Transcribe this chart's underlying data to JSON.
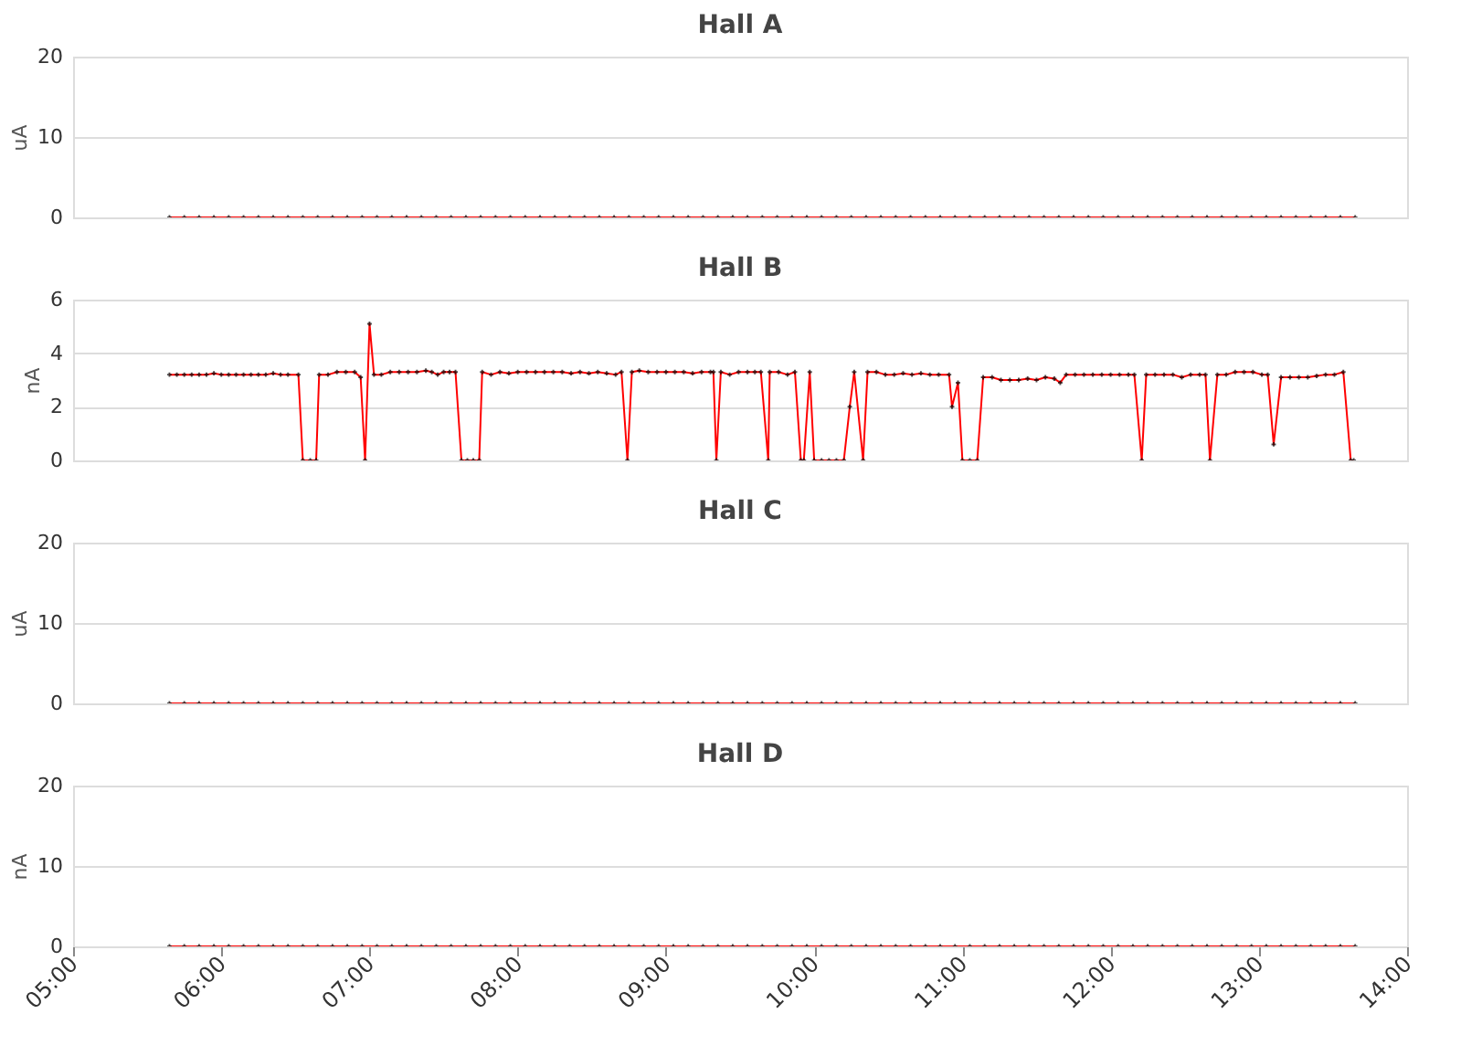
{
  "chart_data": [
    {
      "type": "line",
      "title": "Hall A",
      "ylabel": "uA",
      "ylim": [
        0,
        20
      ],
      "yticks": [
        0,
        10,
        20
      ],
      "xlim": [
        5,
        14
      ],
      "tick_labels": "y",
      "grid": "y",
      "marker": "cross",
      "line_style": "solid",
      "series": [
        {
          "color": "#ff0000",
          "x": [
            5.65,
            5.75,
            5.85,
            5.95,
            6.05,
            6.15,
            6.25,
            6.35,
            6.45,
            6.55,
            6.65,
            6.75,
            6.85,
            6.95,
            7.05,
            7.15,
            7.25,
            7.35,
            7.45,
            7.55,
            7.65,
            7.75,
            7.85,
            7.95,
            8.05,
            8.15,
            8.25,
            8.35,
            8.45,
            8.55,
            8.65,
            8.75,
            8.85,
            8.95,
            9.05,
            9.15,
            9.25,
            9.35,
            9.45,
            9.55,
            9.65,
            9.75,
            9.85,
            9.95,
            10.05,
            10.15,
            10.25,
            10.35,
            10.45,
            10.55,
            10.65,
            10.75,
            10.85,
            10.95,
            11.05,
            11.15,
            11.25,
            11.35,
            11.45,
            11.55,
            11.65,
            11.75,
            11.85,
            11.95,
            12.05,
            12.15,
            12.25,
            12.35,
            12.45,
            12.55,
            12.65,
            12.75,
            12.85,
            12.95,
            13.05,
            13.15,
            13.25,
            13.35,
            13.45,
            13.55,
            13.65
          ],
          "values": [
            0,
            0,
            0,
            0,
            0,
            0,
            0,
            0,
            0,
            0,
            0,
            0,
            0,
            0,
            0,
            0,
            0,
            0,
            0,
            0,
            0,
            0,
            0,
            0,
            0,
            0,
            0,
            0,
            0,
            0,
            0,
            0,
            0,
            0,
            0,
            0,
            0,
            0,
            0,
            0,
            0,
            0,
            0,
            0,
            0,
            0,
            0,
            0,
            0,
            0,
            0,
            0,
            0,
            0,
            0,
            0,
            0,
            0,
            0,
            0,
            0,
            0,
            0,
            0,
            0,
            0,
            0,
            0,
            0,
            0,
            0,
            0,
            0,
            0,
            0,
            0,
            0,
            0,
            0,
            0,
            0
          ]
        }
      ]
    },
    {
      "type": "line",
      "title": "Hall B",
      "ylabel": "nA",
      "ylim": [
        0,
        6
      ],
      "yticks": [
        0,
        2,
        4,
        6
      ],
      "xlim": [
        5,
        14
      ],
      "tick_labels": "y",
      "grid": "y",
      "marker": "cross",
      "line_style": "solid",
      "series": [
        {
          "color": "#ff0000",
          "x": [
            5.65,
            5.7,
            5.75,
            5.8,
            5.85,
            5.9,
            5.95,
            6.0,
            6.05,
            6.1,
            6.15,
            6.2,
            6.25,
            6.3,
            6.35,
            6.4,
            6.45,
            6.52,
            6.55,
            6.6,
            6.64,
            6.66,
            6.72,
            6.78,
            6.84,
            6.9,
            6.94,
            6.97,
            7.0,
            7.03,
            7.08,
            7.14,
            7.2,
            7.26,
            7.32,
            7.38,
            7.42,
            7.46,
            7.5,
            7.54,
            7.58,
            7.62,
            7.66,
            7.7,
            7.74,
            7.76,
            7.82,
            7.88,
            7.94,
            8.0,
            8.06,
            8.12,
            8.18,
            8.24,
            8.3,
            8.36,
            8.42,
            8.48,
            8.54,
            8.6,
            8.66,
            8.7,
            8.74,
            8.77,
            8.82,
            8.88,
            8.94,
            9.0,
            9.06,
            9.12,
            9.18,
            9.24,
            9.3,
            9.32,
            9.34,
            9.37,
            9.43,
            9.49,
            9.55,
            9.6,
            9.64,
            9.69,
            9.7,
            9.76,
            9.82,
            9.87,
            9.91,
            9.93,
            9.97,
            10.0,
            10.05,
            10.1,
            10.15,
            10.2,
            10.24,
            10.27,
            10.33,
            10.36,
            10.42,
            10.48,
            10.54,
            10.6,
            10.66,
            10.72,
            10.78,
            10.84,
            10.91,
            10.93,
            10.97,
            11.0,
            11.05,
            11.1,
            11.14,
            11.2,
            11.26,
            11.32,
            11.38,
            11.44,
            11.5,
            11.56,
            11.62,
            11.66,
            11.7,
            11.76,
            11.82,
            11.88,
            11.94,
            12.0,
            12.06,
            12.12,
            12.16,
            12.21,
            12.24,
            12.3,
            12.36,
            12.42,
            12.48,
            12.54,
            12.6,
            12.64,
            12.67,
            12.72,
            12.78,
            12.84,
            12.9,
            12.96,
            13.02,
            13.06,
            13.1,
            13.15,
            13.21,
            13.27,
            13.33,
            13.39,
            13.45,
            13.51,
            13.57,
            13.62,
            13.64
          ],
          "values": [
            3.2,
            3.2,
            3.2,
            3.2,
            3.2,
            3.2,
            3.25,
            3.2,
            3.2,
            3.2,
            3.2,
            3.2,
            3.2,
            3.2,
            3.25,
            3.2,
            3.2,
            3.2,
            0,
            0,
            0,
            3.2,
            3.2,
            3.3,
            3.3,
            3.3,
            3.1,
            0,
            5.1,
            3.2,
            3.2,
            3.3,
            3.3,
            3.3,
            3.3,
            3.35,
            3.3,
            3.2,
            3.3,
            3.3,
            3.3,
            0,
            0,
            0,
            0,
            3.3,
            3.2,
            3.3,
            3.25,
            3.3,
            3.3,
            3.3,
            3.3,
            3.3,
            3.3,
            3.25,
            3.3,
            3.25,
            3.3,
            3.25,
            3.2,
            3.3,
            0,
            3.3,
            3.35,
            3.3,
            3.3,
            3.3,
            3.3,
            3.3,
            3.25,
            3.3,
            3.3,
            3.3,
            0,
            3.3,
            3.2,
            3.3,
            3.3,
            3.3,
            3.3,
            0,
            3.3,
            3.3,
            3.2,
            3.3,
            0,
            0,
            3.3,
            0,
            0,
            0,
            0,
            0,
            2.0,
            3.3,
            0,
            3.3,
            3.3,
            3.2,
            3.2,
            3.25,
            3.2,
            3.25,
            3.2,
            3.2,
            3.2,
            2.0,
            2.9,
            0,
            0,
            0,
            3.1,
            3.1,
            3.0,
            3.0,
            3.0,
            3.05,
            3.0,
            3.1,
            3.05,
            2.9,
            3.2,
            3.2,
            3.2,
            3.2,
            3.2,
            3.2,
            3.2,
            3.2,
            3.2,
            0,
            3.2,
            3.2,
            3.2,
            3.2,
            3.1,
            3.2,
            3.2,
            3.2,
            0,
            3.2,
            3.2,
            3.3,
            3.3,
            3.3,
            3.2,
            3.2,
            0.6,
            3.1,
            3.1,
            3.1,
            3.1,
            3.15,
            3.2,
            3.2,
            3.3,
            0,
            0
          ]
        }
      ]
    },
    {
      "type": "line",
      "title": "Hall C",
      "ylabel": "uA",
      "ylim": [
        0,
        20
      ],
      "yticks": [
        0,
        10,
        20
      ],
      "xlim": [
        5,
        14
      ],
      "tick_labels": "y",
      "grid": "y",
      "marker": "cross",
      "line_style": "solid",
      "series": [
        {
          "color": "#ff0000",
          "x": [
            5.65,
            5.75,
            5.85,
            5.95,
            6.05,
            6.15,
            6.25,
            6.35,
            6.45,
            6.55,
            6.65,
            6.75,
            6.85,
            6.95,
            7.05,
            7.15,
            7.25,
            7.35,
            7.45,
            7.55,
            7.65,
            7.75,
            7.85,
            7.95,
            8.05,
            8.15,
            8.25,
            8.35,
            8.45,
            8.55,
            8.65,
            8.75,
            8.85,
            8.95,
            9.05,
            9.15,
            9.25,
            9.35,
            9.45,
            9.55,
            9.65,
            9.75,
            9.85,
            9.95,
            10.05,
            10.15,
            10.25,
            10.35,
            10.45,
            10.55,
            10.65,
            10.75,
            10.85,
            10.95,
            11.05,
            11.15,
            11.25,
            11.35,
            11.45,
            11.55,
            11.65,
            11.75,
            11.85,
            11.95,
            12.05,
            12.15,
            12.25,
            12.35,
            12.45,
            12.55,
            12.65,
            12.75,
            12.85,
            12.95,
            13.05,
            13.15,
            13.25,
            13.35,
            13.45,
            13.55,
            13.65
          ],
          "values": [
            0,
            0,
            0,
            0,
            0,
            0,
            0,
            0,
            0,
            0,
            0,
            0,
            0,
            0,
            0,
            0,
            0,
            0,
            0,
            0,
            0,
            0,
            0,
            0,
            0,
            0,
            0,
            0,
            0,
            0,
            0,
            0,
            0,
            0,
            0,
            0,
            0,
            0,
            0,
            0,
            0,
            0,
            0,
            0,
            0,
            0,
            0,
            0,
            0,
            0,
            0,
            0,
            0,
            0,
            0,
            0,
            0,
            0,
            0,
            0,
            0,
            0,
            0,
            0,
            0,
            0,
            0,
            0,
            0,
            0,
            0,
            0,
            0,
            0,
            0,
            0,
            0,
            0,
            0,
            0,
            0
          ]
        }
      ]
    },
    {
      "type": "line",
      "title": "Hall D",
      "ylabel": "nA",
      "ylim": [
        0,
        20
      ],
      "yticks": [
        0,
        10,
        20
      ],
      "xlim": [
        5,
        14
      ],
      "xticks": [
        {
          "value": 5,
          "label": "05:00"
        },
        {
          "value": 6,
          "label": "06:00"
        },
        {
          "value": 7,
          "label": "07:00"
        },
        {
          "value": 8,
          "label": "08:00"
        },
        {
          "value": 9,
          "label": "09:00"
        },
        {
          "value": 10,
          "label": "10:00"
        },
        {
          "value": 11,
          "label": "11:00"
        },
        {
          "value": 12,
          "label": "12:00"
        },
        {
          "value": 13,
          "label": "13:00"
        },
        {
          "value": 14,
          "label": "14:00"
        }
      ],
      "grid": "y",
      "marker": "cross",
      "line_style": "solid",
      "series": [
        {
          "color": "#ff0000",
          "x": [
            5.65,
            5.75,
            5.85,
            5.95,
            6.05,
            6.15,
            6.25,
            6.35,
            6.45,
            6.55,
            6.65,
            6.75,
            6.85,
            6.95,
            7.05,
            7.15,
            7.25,
            7.35,
            7.45,
            7.55,
            7.65,
            7.75,
            7.85,
            7.95,
            8.05,
            8.15,
            8.25,
            8.35,
            8.45,
            8.55,
            8.65,
            8.75,
            8.85,
            8.95,
            9.05,
            9.15,
            9.25,
            9.35,
            9.45,
            9.55,
            9.65,
            9.75,
            9.85,
            9.95,
            10.05,
            10.15,
            10.25,
            10.35,
            10.45,
            10.55,
            10.65,
            10.75,
            10.85,
            10.95,
            11.05,
            11.15,
            11.25,
            11.35,
            11.45,
            11.55,
            11.65,
            11.75,
            11.85,
            11.95,
            12.05,
            12.15,
            12.25,
            12.35,
            12.45,
            12.55,
            12.65,
            12.75,
            12.85,
            12.95,
            13.05,
            13.15,
            13.25,
            13.35,
            13.45,
            13.55,
            13.65
          ],
          "values": [
            0,
            0,
            0,
            0,
            0,
            0,
            0,
            0,
            0,
            0,
            0,
            0,
            0,
            0,
            0,
            0,
            0,
            0,
            0,
            0,
            0,
            0,
            0,
            0,
            0,
            0,
            0,
            0,
            0,
            0,
            0,
            0,
            0,
            0,
            0,
            0,
            0,
            0,
            0,
            0,
            0,
            0,
            0,
            0,
            0,
            0,
            0,
            0,
            0,
            0,
            0,
            0,
            0,
            0,
            0,
            0,
            0,
            0,
            0,
            0,
            0,
            0,
            0,
            0,
            0,
            0,
            0,
            0,
            0,
            0,
            0,
            0,
            0,
            0,
            0,
            0,
            0,
            0,
            0,
            0,
            0
          ]
        }
      ]
    }
  ]
}
